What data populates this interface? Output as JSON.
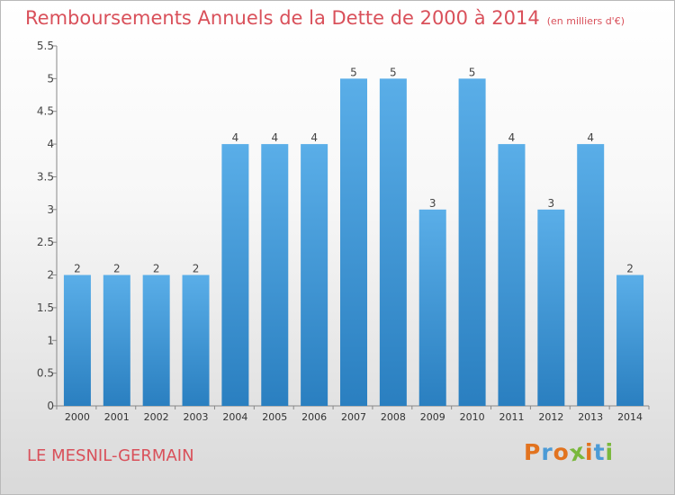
{
  "header": {
    "title": "Remboursements Annuels de la Dette de 2000 à 2014",
    "unit": "(en milliers d'€)"
  },
  "footer": {
    "town": "LE MESNIL-GERMAIN",
    "logo_text": "Proxiti",
    "logo_colors": [
      "#e2731f",
      "#4c9bd6",
      "#e2731f",
      "#7ab83c",
      "#e2731f",
      "#4c9bd6",
      "#7ab83c"
    ]
  },
  "colors": {
    "bar_light": "#5aaee8",
    "bar_dark": "#2a7fc0",
    "title": "#d9505a"
  },
  "chart_data": {
    "type": "bar",
    "title": "Remboursements Annuels de la Dette de 2000 à 2014",
    "xlabel": "",
    "ylabel": "",
    "categories": [
      "2000",
      "2001",
      "2002",
      "2003",
      "2004",
      "2005",
      "2006",
      "2007",
      "2008",
      "2009",
      "2010",
      "2011",
      "2012",
      "2013",
      "2014"
    ],
    "values": [
      2,
      2,
      2,
      2,
      4,
      4,
      4,
      5,
      5,
      3,
      5,
      4,
      3,
      4,
      2
    ],
    "data_labels": [
      "2",
      "2",
      "2",
      "2",
      "4",
      "4",
      "4",
      "5",
      "5",
      "3",
      "5",
      "4",
      "3",
      "4",
      "2"
    ],
    "ylim": [
      0,
      5.5
    ],
    "yticks": [
      0,
      0.5,
      1,
      1.5,
      2,
      2.5,
      3,
      3.5,
      4,
      4.5,
      5,
      5.5
    ],
    "ytick_labels": [
      "0",
      "0.5",
      "1",
      "1.5",
      "2",
      "2.5",
      "3",
      "3.5",
      "4",
      "4.5",
      "5",
      "5.5"
    ],
    "grid": false,
    "legend": "none"
  }
}
